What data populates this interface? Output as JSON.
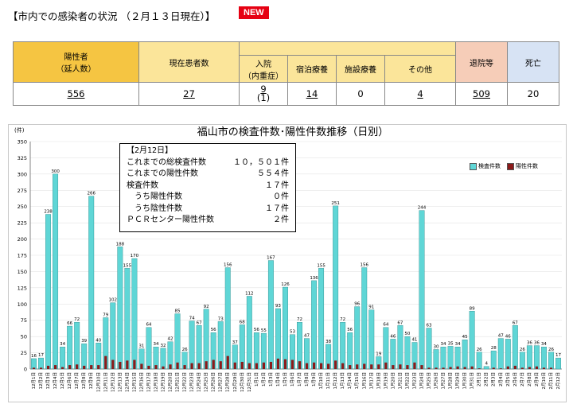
{
  "header": {
    "title": "【市内での感染者の状況 （２月１３日現在）】",
    "badge": "NEW"
  },
  "summary": {
    "positive_label": "陽性者\n（延人数）",
    "current_label": "現在患者数",
    "hosp_label": "入院\n（内重症）",
    "hotel_label": "宿泊療養",
    "facility_label": "施設療養",
    "other_label": "その他",
    "discharged_label": "退院等",
    "death_label": "死亡",
    "positive": "556",
    "current": "27",
    "hosp": "9",
    "hosp_severe": "(1)",
    "hotel": "14",
    "facility": "0",
    "other": "4",
    "discharged": "509",
    "death": "20",
    "colors": {
      "positive": "#f5c542",
      "sub": "#fbe59a",
      "discharged": "#f6cdb8",
      "death": "#d7e3f4"
    }
  },
  "note": {
    "title": "【2月12日】",
    "rows": [
      {
        "label": "これまでの総検査件数",
        "value": "１０，５０１件"
      },
      {
        "label": "これまでの陽性件数",
        "value": "５５４件"
      },
      {
        "label": "検査件数",
        "value": "１７件"
      },
      {
        "label": "　うち陽性件数",
        "value": "０件"
      },
      {
        "label": "　うち陰性件数",
        "value": "１７件"
      },
      {
        "label": "ＰＣＲセンター陽性件数",
        "value": "２件"
      }
    ]
  },
  "chart_data": {
    "type": "bar",
    "title": "福山市の検査件数･陽性件数推移（日別）",
    "ylabel": "(件)",
    "ylim": [
      0,
      350
    ],
    "yticks": [
      0,
      25,
      50,
      75,
      100,
      125,
      150,
      175,
      200,
      225,
      250,
      275,
      300,
      325,
      350
    ],
    "legend": [
      "検査件数",
      "陽性件数"
    ],
    "colors": {
      "tests": "#5fd6d6",
      "pos": "#8b1a1a"
    },
    "categories": [
      "12月1日",
      "12月2日",
      "12月3日",
      "12月4日",
      "12月5日",
      "12月6日",
      "12月7日",
      "12月8日",
      "12月9日",
      "12月10日",
      "12月11日",
      "12月12日",
      "12月13日",
      "12月14日",
      "12月15日",
      "12月16日",
      "12月17日",
      "12月18日",
      "12月19日",
      "12月20日",
      "12月21日",
      "12月22日",
      "12月23日",
      "12月24日",
      "12月25日",
      "12月26日",
      "12月27日",
      "12月28日",
      "12月29日",
      "12月30日",
      "12月31日",
      "1月1日",
      "1月2日",
      "1月3日",
      "1月4日",
      "1月5日",
      "1月6日",
      "1月7日",
      "1月8日",
      "1月9日",
      "1月10日",
      "1月11日",
      "1月12日",
      "1月13日",
      "1月14日",
      "1月15日",
      "1月16日",
      "1月17日",
      "1月18日",
      "1月19日",
      "1月20日",
      "1月21日",
      "1月22日",
      "1月23日",
      "1月24日",
      "1月25日",
      "1月26日",
      "1月27日",
      "1月28日",
      "1月29日",
      "1月30日",
      "1月31日",
      "2月1日",
      "2月2日",
      "2月3日",
      "2月4日",
      "2月5日",
      "2月6日",
      "2月7日",
      "2月8日",
      "2月9日",
      "2月10日",
      "2月11日",
      "2月12日"
    ],
    "series": [
      {
        "name": "検査件数",
        "values": [
          16,
          17,
          238,
          300,
          34,
          66,
          72,
          39,
          266,
          40,
          79,
          102,
          188,
          155,
          170,
          31,
          64,
          34,
          32,
          42,
          85,
          26,
          74,
          67,
          92,
          56,
          73,
          156,
          37,
          68,
          112,
          56,
          55,
          167,
          93,
          126,
          53,
          72,
          47,
          136,
          155,
          38,
          251,
          72,
          56,
          96,
          156,
          91,
          19,
          64,
          46,
          67,
          50,
          41,
          244,
          63,
          30,
          34,
          35,
          34,
          45,
          89,
          26,
          4,
          28,
          47,
          46,
          67,
          26,
          36,
          36,
          34,
          26,
          17
        ]
      },
      {
        "name": "陽性件数",
        "values": [
          2,
          2,
          5,
          6,
          3,
          6,
          7,
          5,
          6,
          6,
          20,
          14,
          11,
          13,
          14,
          8,
          5,
          6,
          4,
          7,
          10,
          6,
          9,
          9,
          12,
          14,
          12,
          20,
          10,
          11,
          9,
          9,
          10,
          11,
          16,
          15,
          14,
          12,
          9,
          10,
          9,
          8,
          13,
          9,
          6,
          7,
          8,
          7,
          7,
          10,
          6,
          7,
          6,
          10,
          6,
          2,
          2,
          2,
          3,
          4,
          3,
          4,
          1,
          0,
          2,
          1,
          4,
          5,
          2,
          3,
          4,
          2,
          2,
          0
        ]
      }
    ]
  }
}
